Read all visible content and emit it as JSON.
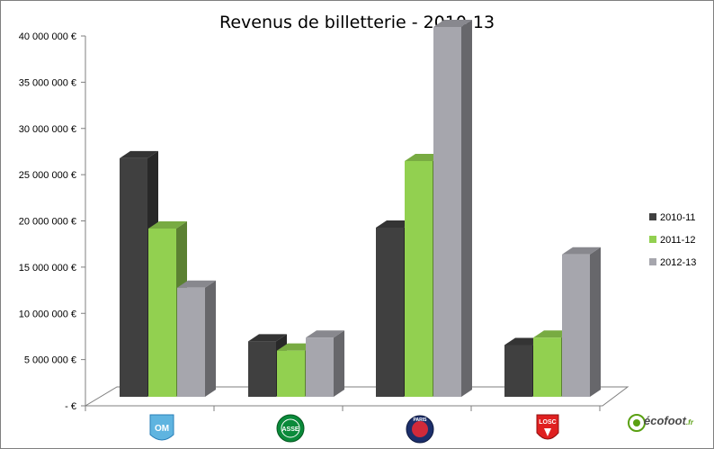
{
  "chart_data": {
    "type": "bar",
    "title": "Revenus de billetterie - 2010-13",
    "categories": [
      "Olympique de Marseille",
      "AS Saint-Étienne",
      "Paris Saint-Germain",
      "LOSC Lille"
    ],
    "series": [
      {
        "name": "2010-11",
        "color": "#404040",
        "values": [
          25800000,
          6000000,
          18300000,
          5600000
        ]
      },
      {
        "name": "2011-12",
        "color": "#92d050",
        "values": [
          18200000,
          5000000,
          25500000,
          6400000
        ]
      },
      {
        "name": "2012-13",
        "color": "#a6a6ad",
        "values": [
          11800000,
          6400000,
          40000000,
          15400000
        ]
      }
    ],
    "ylim": [
      0,
      40000000
    ],
    "yticks": [
      0,
      5000000,
      10000000,
      15000000,
      20000000,
      25000000,
      30000000,
      35000000,
      40000000
    ],
    "ytick_labels": [
      "- €",
      "5 000 000 €",
      "10 000 000 €",
      "15 000 000 €",
      "20 000 000 €",
      "25 000 000 €",
      "30 000 000 €",
      "35 000 000 €",
      "40 000 000 €"
    ],
    "legend_position": "right",
    "grid": false,
    "style": "3d-column"
  },
  "logos": {
    "om": "OM",
    "stetienne": "ASSE",
    "psg": "PARIS",
    "lille": "LOSC",
    "watermark": "écofoot",
    "watermark_suffix": ".fr",
    "icons": [
      "om-crest-icon",
      "saint-etienne-crest-icon",
      "psg-crest-icon",
      "losc-crest-icon",
      "ecofoot-logo-icon"
    ]
  }
}
